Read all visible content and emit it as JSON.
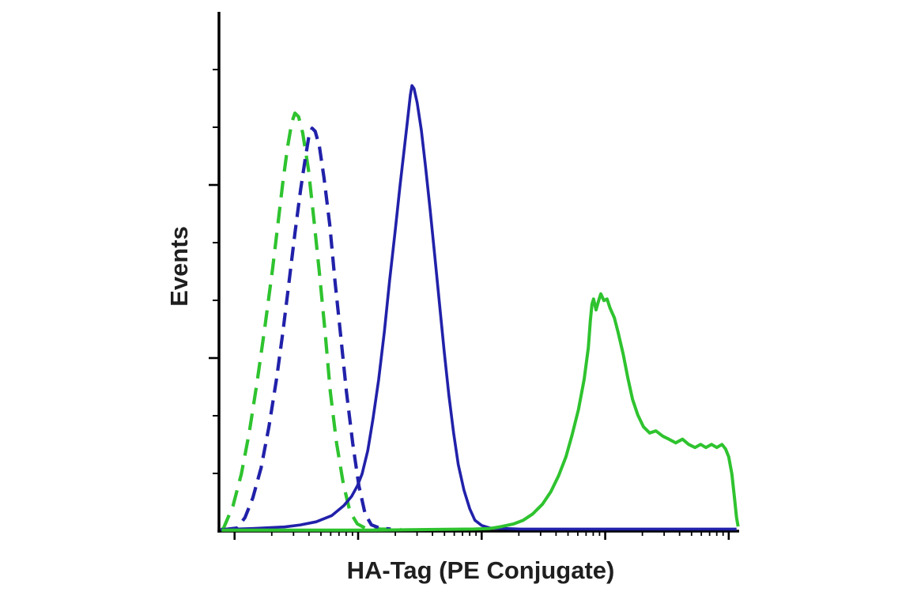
{
  "figure": {
    "background": "#ffffff",
    "text_color": "#1f1f1f"
  },
  "chart_data": {
    "type": "line",
    "subtype": "flow-cytometry-histogram",
    "title": "",
    "xlabel": "HA-Tag (PE Conjugate)",
    "ylabel": "Events",
    "legend": "none",
    "grid": false,
    "axis_color": "#000000",
    "axis_stroke_width": 3.5,
    "x_axis": {
      "scale": "log",
      "ticks_outside": true,
      "decade_fracs": [
        0.03,
        0.2675,
        0.505,
        0.7425,
        0.98
      ],
      "major_tick_len": 11,
      "minor_tick_len": 6
    },
    "y_axis": {
      "scale": "linear",
      "ticks_outside": true,
      "minor_divisions": 9,
      "major_at": [
        3,
        6
      ],
      "major_tick_len": 13,
      "minor_tick_len": 8
    },
    "series": [
      {
        "name": "green-dashed-control",
        "style": "dashed",
        "color": "#2fc32f",
        "width": 4.2,
        "dash": "21 12",
        "points": [
          [
            0.5,
            0.3
          ],
          [
            0.9,
            0.6
          ],
          [
            2.7,
            4.9
          ],
          [
            4.3,
            11.0
          ],
          [
            5.8,
            18.9
          ],
          [
            7.3,
            28.5
          ],
          [
            8.8,
            39.1
          ],
          [
            10.3,
            50.5
          ],
          [
            11.4,
            59.7
          ],
          [
            12.3,
            67.3
          ],
          [
            13.2,
            74.1
          ],
          [
            14.0,
            78.7
          ],
          [
            14.6,
            80.5
          ],
          [
            15.3,
            79.8
          ],
          [
            16.1,
            76.7
          ],
          [
            17.2,
            69.6
          ],
          [
            18.2,
            60.4
          ],
          [
            19.3,
            49.8
          ],
          [
            20.4,
            38.4
          ],
          [
            21.4,
            26.9
          ],
          [
            22.6,
            17.0
          ],
          [
            23.9,
            9.1
          ],
          [
            25.2,
            3.7
          ],
          [
            26.6,
            1.4
          ],
          [
            28.1,
            0.6
          ],
          [
            31.0,
            0.4
          ],
          [
            35.0,
            0.3
          ]
        ]
      },
      {
        "name": "blue-dashed-control",
        "style": "dashed",
        "color": "#2121aa",
        "width": 4.2,
        "dash": "18 10",
        "points": [
          [
            1.0,
            0.3
          ],
          [
            3.5,
            0.6
          ],
          [
            5.0,
            2.6
          ],
          [
            6.5,
            6.4
          ],
          [
            8.1,
            12.2
          ],
          [
            9.6,
            20.1
          ],
          [
            11.1,
            29.5
          ],
          [
            12.3,
            38.4
          ],
          [
            13.5,
            48.2
          ],
          [
            14.6,
            57.4
          ],
          [
            15.7,
            65.8
          ],
          [
            16.6,
            71.8
          ],
          [
            17.3,
            76.1
          ],
          [
            17.9,
            77.6
          ],
          [
            18.5,
            77.0
          ],
          [
            19.3,
            74.1
          ],
          [
            20.2,
            68.0
          ],
          [
            21.3,
            58.9
          ],
          [
            22.3,
            48.2
          ],
          [
            23.4,
            37.6
          ],
          [
            24.5,
            26.9
          ],
          [
            25.7,
            17.0
          ],
          [
            26.9,
            8.7
          ],
          [
            28.1,
            3.3
          ],
          [
            29.3,
            1.2
          ],
          [
            30.9,
            0.6
          ],
          [
            33.0,
            0.4
          ]
        ]
      },
      {
        "name": "blue-solid",
        "style": "solid",
        "color": "#2121aa",
        "width": 3.6,
        "dash": "",
        "points": [
          [
            0.3,
            0.3
          ],
          [
            6.5,
            0.5
          ],
          [
            12.6,
            0.8
          ],
          [
            15.7,
            1.2
          ],
          [
            18.7,
            1.8
          ],
          [
            21.7,
            3.0
          ],
          [
            24.0,
            4.9
          ],
          [
            25.5,
            6.7
          ],
          [
            26.6,
            8.7
          ],
          [
            27.5,
            11.0
          ],
          [
            28.6,
            15.5
          ],
          [
            29.6,
            21.6
          ],
          [
            30.7,
            29.2
          ],
          [
            31.8,
            38.4
          ],
          [
            32.8,
            48.2
          ],
          [
            33.9,
            58.1
          ],
          [
            34.8,
            66.5
          ],
          [
            35.6,
            73.4
          ],
          [
            36.2,
            78.7
          ],
          [
            36.8,
            84.0
          ],
          [
            37.1,
            85.8
          ],
          [
            37.5,
            85.2
          ],
          [
            38.1,
            82.5
          ],
          [
            38.9,
            77.2
          ],
          [
            39.7,
            70.3
          ],
          [
            40.6,
            61.9
          ],
          [
            41.5,
            52.8
          ],
          [
            42.4,
            43.7
          ],
          [
            43.3,
            34.6
          ],
          [
            44.2,
            26.2
          ],
          [
            45.1,
            18.9
          ],
          [
            46.0,
            12.8
          ],
          [
            47.1,
            7.9
          ],
          [
            48.2,
            4.3
          ],
          [
            49.2,
            2.1
          ],
          [
            50.5,
            1.1
          ],
          [
            52.1,
            0.6
          ],
          [
            58.0,
            0.4
          ],
          [
            64.3,
            0.4
          ],
          [
            72.0,
            0.4
          ],
          [
            79.5,
            0.4
          ],
          [
            88.0,
            0.4
          ],
          [
            99.5,
            0.4
          ]
        ]
      },
      {
        "name": "green-solid",
        "style": "solid",
        "color": "#2fc32f",
        "width": 4.0,
        "dash": "",
        "points": [
          [
            0.5,
            0.2
          ],
          [
            10.0,
            0.2
          ],
          [
            20.0,
            0.2
          ],
          [
            30.0,
            0.2
          ],
          [
            40.0,
            0.3
          ],
          [
            49.1,
            0.4
          ],
          [
            52.1,
            0.5
          ],
          [
            54.4,
            0.9
          ],
          [
            56.7,
            1.4
          ],
          [
            58.5,
            2.1
          ],
          [
            60.3,
            3.3
          ],
          [
            62.2,
            5.2
          ],
          [
            63.8,
            7.6
          ],
          [
            65.3,
            10.7
          ],
          [
            66.7,
            14.3
          ],
          [
            67.9,
            18.6
          ],
          [
            69.1,
            23.4
          ],
          [
            70.2,
            29.2
          ],
          [
            71.0,
            35.3
          ],
          [
            71.4,
            40.6
          ],
          [
            71.7,
            43.7
          ],
          [
            72.0,
            44.7
          ],
          [
            72.5,
            42.6
          ],
          [
            73.0,
            44.4
          ],
          [
            73.4,
            45.7
          ],
          [
            74.0,
            44.4
          ],
          [
            74.6,
            44.7
          ],
          [
            75.2,
            42.9
          ],
          [
            76.0,
            41.1
          ],
          [
            76.7,
            38.4
          ],
          [
            77.7,
            34.1
          ],
          [
            78.6,
            29.5
          ],
          [
            79.5,
            25.4
          ],
          [
            80.5,
            22.4
          ],
          [
            81.6,
            20.1
          ],
          [
            82.8,
            18.9
          ],
          [
            84.0,
            19.3
          ],
          [
            85.3,
            18.3
          ],
          [
            86.5,
            17.7
          ],
          [
            87.8,
            17.0
          ],
          [
            89.1,
            17.7
          ],
          [
            90.3,
            16.7
          ],
          [
            91.5,
            16.1
          ],
          [
            92.6,
            16.7
          ],
          [
            93.6,
            16.1
          ],
          [
            94.7,
            16.7
          ],
          [
            95.7,
            16.1
          ],
          [
            96.7,
            16.7
          ],
          [
            97.4,
            15.8
          ],
          [
            98.0,
            14.3
          ],
          [
            98.6,
            11.0
          ],
          [
            99.1,
            6.4
          ],
          [
            99.5,
            2.6
          ],
          [
            99.8,
            0.9
          ]
        ]
      }
    ]
  }
}
